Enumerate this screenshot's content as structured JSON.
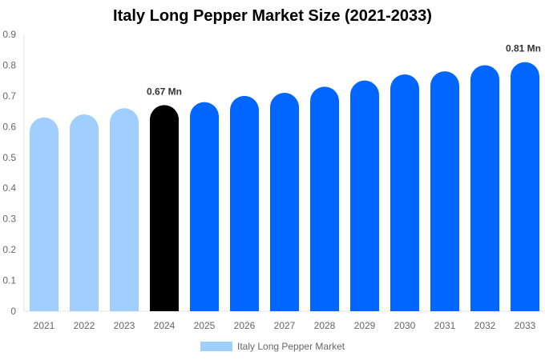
{
  "chart_data": {
    "type": "bar",
    "title": "Italy Long Pepper Market Size (2021-2033)",
    "categories": [
      "2021",
      "2022",
      "2023",
      "2024",
      "2025",
      "2026",
      "2027",
      "2028",
      "2029",
      "2030",
      "2031",
      "2032",
      "2033"
    ],
    "series": [
      {
        "name": "Italy Long Pepper Market",
        "values": [
          0.63,
          0.64,
          0.66,
          0.67,
          0.68,
          0.7,
          0.71,
          0.73,
          0.75,
          0.77,
          0.78,
          0.8,
          0.81
        ]
      }
    ],
    "ylim": [
      0,
      0.9
    ],
    "yticks": [
      "0",
      "0.1",
      "0.2",
      "0.3",
      "0.4",
      "0.5",
      "0.6",
      "0.7",
      "0.8",
      "0.9"
    ],
    "annotations": [
      {
        "category": "2024",
        "text": "0.67 Mn"
      },
      {
        "category": "2033",
        "text": "0.81 Mn"
      }
    ],
    "colors": {
      "historical": "#a0cfff",
      "current": "#000000",
      "forecast": "#0066ff"
    },
    "grid": false,
    "legend": "bottom"
  }
}
